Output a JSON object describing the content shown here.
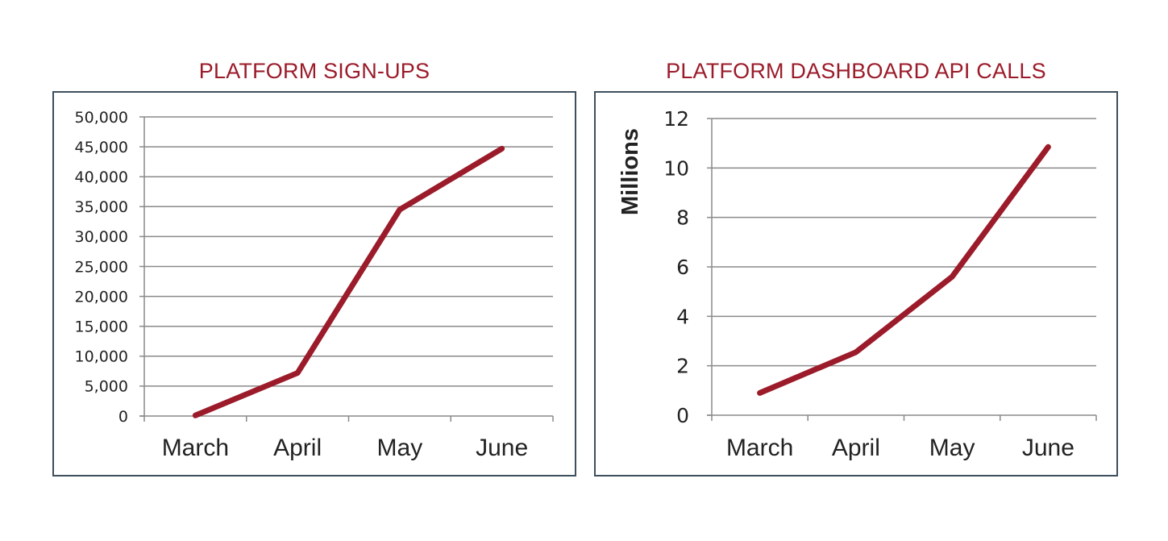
{
  "chart_data": [
    {
      "type": "line",
      "title": "PLATFORM SIGN-UPS",
      "xlabel": "",
      "ylabel": "",
      "categories": [
        "March",
        "April",
        "May",
        "June"
      ],
      "y_tick_labels": [
        "0",
        "5,000",
        "10,000",
        "15,000",
        "20,000",
        "25,000",
        "30,000",
        "35,000",
        "40,000",
        "45,000",
        "50,000"
      ],
      "ylim": [
        0,
        50000
      ],
      "grid": true,
      "legend": "none",
      "series": [
        {
          "values": [
            100,
            7200,
            34500,
            44700
          ],
          "color": "#9b1b2a"
        }
      ]
    },
    {
      "type": "line",
      "title": "PLATFORM DASHBOARD API CALLS",
      "xlabel": "",
      "ylabel": "Millions",
      "categories": [
        "March",
        "April",
        "May",
        "June"
      ],
      "y_tick_labels": [
        "0",
        "2",
        "4",
        "6",
        "8",
        "10",
        "12"
      ],
      "ylim": [
        0,
        12
      ],
      "grid": true,
      "legend": "none",
      "series": [
        {
          "values": [
            0.9,
            2.55,
            5.6,
            10.85
          ],
          "color": "#9b1b2a"
        }
      ]
    }
  ]
}
